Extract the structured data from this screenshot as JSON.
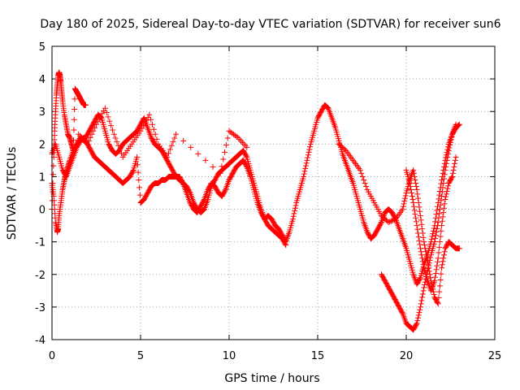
{
  "chart_data": {
    "type": "scatter",
    "title": "Day 180 of 2025, Sidereal Day-to-day VTEC variation (SDTVAR) for receiver sun6",
    "xlabel": "GPS time / hours",
    "ylabel": "SDTVAR / TECUs",
    "xlim": [
      0,
      25
    ],
    "ylim": [
      -4,
      5
    ],
    "xticks": [
      "0",
      "5",
      "10",
      "15",
      "20",
      "25"
    ],
    "yticks": [
      "-4",
      "-3",
      "-2",
      "-1",
      "0",
      "1",
      "2",
      "3",
      "4",
      "5"
    ],
    "grid": true,
    "legend": "none",
    "marker": "plus",
    "color": "#ff0000",
    "series": [
      {
        "x": [
          0.0,
          0.1,
          0.2,
          0.3,
          0.35,
          0.4,
          0.5,
          0.6,
          0.7,
          0.8,
          0.9,
          1.0,
          1.2,
          1.4,
          1.6,
          1.8,
          2.0,
          2.2,
          2.4,
          2.6,
          2.8,
          3.0,
          3.2,
          3.4,
          3.6,
          3.8,
          4.0,
          4.2,
          4.4,
          4.6,
          4.8,
          5.0,
          5.2,
          5.4,
          5.6,
          5.8,
          6.0,
          6.2,
          6.4,
          6.6,
          6.8,
          7.0,
          7.2,
          7.4,
          7.6,
          7.8,
          8.0,
          8.2,
          8.4,
          8.6,
          8.8,
          9.0,
          9.2,
          9.4,
          9.6,
          9.8,
          10.0,
          10.2,
          10.4,
          10.6,
          10.8,
          11.0,
          11.2,
          11.4,
          11.6,
          11.8,
          12.0,
          12.2,
          12.4,
          12.6,
          12.8,
          13.0,
          13.2,
          13.4,
          13.6,
          13.8,
          14.0,
          14.2,
          14.4,
          14.6,
          14.8,
          15.0,
          15.2,
          15.4,
          15.6,
          15.8,
          16.0,
          16.2,
          16.4,
          16.6,
          16.8,
          17.0,
          17.2,
          17.4,
          17.6,
          17.8,
          18.0,
          18.2,
          18.4,
          18.6,
          18.8,
          19.0,
          19.2,
          19.4,
          19.6,
          19.8,
          20.0,
          20.2,
          20.4,
          20.6,
          20.8,
          21.0,
          21.2,
          21.4,
          21.6,
          21.8,
          22.0,
          22.2,
          22.4,
          22.6,
          22.8,
          23.0
        ],
        "y": [
          0.8,
          0.4,
          -0.4,
          -0.7,
          -0.6,
          -0.2,
          0.2,
          0.6,
          0.9,
          1.1,
          1.3,
          1.5,
          1.8,
          2.0,
          2.2,
          2.1,
          2.3,
          2.5,
          2.7,
          2.9,
          2.8,
          2.4,
          2.0,
          1.8,
          1.7,
          1.8,
          2.0,
          2.1,
          2.2,
          2.3,
          2.4,
          2.6,
          2.8,
          2.5,
          2.2,
          2.0,
          1.9,
          1.8,
          1.6,
          1.4,
          1.2,
          1.0,
          0.9,
          0.8,
          0.7,
          0.5,
          0.2,
          0.0,
          -0.1,
          0.0,
          0.3,
          0.7,
          0.9,
          1.1,
          1.2,
          1.3,
          1.4,
          1.5,
          1.6,
          1.7,
          1.8,
          1.6,
          1.2,
          0.8,
          0.4,
          0.0,
          -0.3,
          -0.2,
          -0.3,
          -0.5,
          -0.6,
          -0.8,
          -1.0,
          -0.7,
          -0.3,
          0.2,
          0.6,
          1.0,
          1.5,
          2.0,
          2.4,
          2.8,
          3.0,
          3.2,
          3.1,
          2.8,
          2.5,
          2.1,
          1.7,
          1.4,
          1.1,
          0.8,
          0.4,
          0.0,
          -0.4,
          -0.7,
          -0.9,
          -0.8,
          -0.6,
          -0.4,
          -0.1,
          0.0,
          -0.1,
          -0.3,
          -0.6,
          -0.9,
          -1.2,
          -1.6,
          -2.0,
          -2.3,
          -2.1,
          -1.7,
          -1.4,
          -1.0,
          -0.5,
          0.2,
          0.9,
          1.5,
          2.0,
          2.3,
          2.5,
          2.6
        ]
      },
      {
        "x": [
          0.0,
          0.1,
          0.15,
          0.2,
          0.25,
          0.3,
          0.35,
          0.4,
          0.45,
          0.5,
          0.55,
          0.6,
          0.7,
          0.8,
          0.9,
          1.0,
          1.1,
          1.2,
          1.3,
          1.4,
          1.5,
          1.6,
          1.7,
          1.8,
          1.9
        ],
        "y": [
          0.0,
          1.6,
          2.4,
          3.0,
          3.5,
          3.8,
          4.1,
          4.2,
          4.1,
          3.9,
          3.6,
          3.3,
          2.9,
          2.6,
          2.3,
          2.2,
          2.0,
          1.8,
          3.7,
          3.6,
          3.5,
          3.4,
          3.3,
          3.2,
          3.2
        ]
      },
      {
        "x": [
          0.0,
          0.2,
          0.4,
          0.6,
          0.8,
          1.0,
          1.2,
          1.4,
          1.6,
          1.8,
          2.0,
          2.2,
          2.4,
          2.6,
          2.8,
          3.0,
          3.2,
          3.4,
          3.6,
          3.8,
          4.0,
          4.2,
          4.4,
          4.6,
          4.8,
          5.0,
          5.2,
          5.4,
          5.6,
          5.8,
          6.0,
          6.2,
          6.4,
          6.6,
          6.8,
          7.0,
          7.2,
          7.4,
          7.6,
          7.8,
          8.0,
          8.2,
          8.4,
          8.6,
          8.8,
          9.0,
          9.2,
          9.4,
          9.6,
          9.8,
          10.0,
          10.2,
          10.4,
          10.6,
          10.8,
          11.0,
          11.2,
          11.4,
          11.6,
          11.8,
          12.0,
          12.2,
          12.4,
          12.6,
          12.8,
          13.0,
          13.2
        ],
        "y": [
          1.7,
          2.0,
          1.6,
          1.2,
          1.0,
          1.3,
          1.6,
          1.9,
          2.1,
          2.2,
          2.0,
          1.8,
          1.6,
          1.5,
          1.4,
          1.3,
          1.2,
          1.1,
          1.0,
          0.9,
          0.8,
          0.9,
          1.0,
          1.2,
          1.6,
          0.2,
          0.3,
          0.5,
          0.7,
          0.8,
          0.8,
          0.9,
          0.9,
          1.0,
          1.0,
          1.0,
          1.0,
          0.8,
          0.5,
          0.2,
          0.0,
          -0.1,
          0.1,
          0.3,
          0.6,
          0.8,
          0.7,
          0.5,
          0.4,
          0.6,
          0.9,
          1.1,
          1.3,
          1.4,
          1.5,
          1.3,
          1.0,
          0.6,
          0.2,
          -0.1,
          -0.3,
          -0.5,
          -0.6,
          -0.7,
          -0.8,
          -0.9,
          -1.1
        ]
      },
      {
        "x": [
          1.5,
          2.0,
          2.5,
          3.0,
          3.5,
          4.0,
          4.5,
          5.0,
          5.5,
          6.0,
          6.5,
          7.0,
          9.5,
          10.0,
          10.5,
          11.0
        ],
        "y": [
          2.3,
          2.0,
          2.6,
          3.1,
          2.3,
          1.6,
          2.0,
          2.4,
          2.9,
          2.0,
          1.6,
          2.3,
          1.1,
          2.4,
          2.2,
          1.9
        ]
      },
      {
        "x": [
          16.2,
          16.6,
          17.0,
          17.4,
          17.8,
          18.2,
          18.6,
          19.0,
          19.4,
          19.8,
          20.0,
          20.2,
          20.4,
          20.6,
          20.8,
          21.0,
          21.2,
          21.4,
          21.6,
          21.8,
          22.0,
          22.2,
          22.4,
          22.6,
          22.8,
          23.0
        ],
        "y": [
          2.0,
          1.8,
          1.5,
          1.2,
          0.6,
          0.2,
          -0.2,
          -0.4,
          -0.3,
          0.0,
          0.5,
          0.9,
          1.2,
          0.6,
          -0.2,
          -1.0,
          -1.6,
          -2.2,
          -2.7,
          -2.9,
          -1.8,
          -1.2,
          -1.0,
          -1.1,
          -1.2,
          -1.2
        ]
      },
      {
        "x": [
          18.6,
          18.8,
          19.0,
          19.2,
          19.4,
          19.6,
          19.8,
          20.0,
          20.2,
          20.4,
          20.6,
          20.8,
          21.0,
          21.2,
          21.4,
          21.6,
          21.8,
          22.0,
          22.2,
          22.4,
          22.6,
          22.8
        ],
        "y": [
          -2.0,
          -2.2,
          -2.4,
          -2.6,
          -2.8,
          -3.0,
          -3.2,
          -3.5,
          -3.6,
          -3.7,
          -3.5,
          -3.0,
          -2.4,
          -1.9,
          -1.4,
          -1.0,
          -0.4,
          0.4,
          1.2,
          1.8,
          2.3,
          2.6
        ]
      },
      {
        "x": [
          20.0,
          20.2,
          20.4,
          20.6,
          20.8,
          21.0,
          21.2,
          21.4,
          21.6,
          21.8,
          22.0,
          22.2,
          22.4,
          22.6,
          22.8
        ],
        "y": [
          1.2,
          0.8,
          0.2,
          -0.5,
          -1.2,
          -1.8,
          -2.2,
          -2.5,
          -2.2,
          -1.5,
          -0.5,
          0.3,
          0.8,
          1.0,
          1.6
        ]
      }
    ]
  }
}
